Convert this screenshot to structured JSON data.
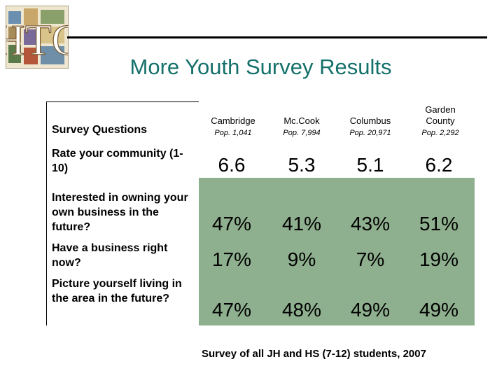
{
  "title": "More Youth Survey Results",
  "logo": {
    "text": "HTC"
  },
  "table": {
    "question_header": "Survey Questions",
    "columns": [
      {
        "name": "Cambridge",
        "population": "Pop. 1,041"
      },
      {
        "name": "Mc.Cook",
        "population": "Pop. 7,994"
      },
      {
        "name": "Columbus",
        "population": "Pop. 20,971"
      },
      {
        "name": "Garden County",
        "population": "Pop. 2,292"
      }
    ],
    "rows": [
      {
        "question": "Rate your community (1-10)",
        "values": [
          "6.6",
          "5.3",
          "5.1",
          "6.2"
        ]
      },
      {
        "question": "Interested in owning your own business in the future?",
        "values": [
          "47%",
          "41%",
          "43%",
          "51%"
        ]
      },
      {
        "question": "Have a business right now?",
        "values": [
          "17%",
          "9%",
          "7%",
          "19%"
        ]
      },
      {
        "question": "Picture yourself living in the area in the future?",
        "values": [
          "47%",
          "48%",
          "49%",
          "49%"
        ]
      }
    ]
  },
  "footnote": "Survey of all JH and HS (7-12) students, 2007",
  "colors": {
    "title": "#14706b",
    "highlight": "#8fb08f"
  }
}
